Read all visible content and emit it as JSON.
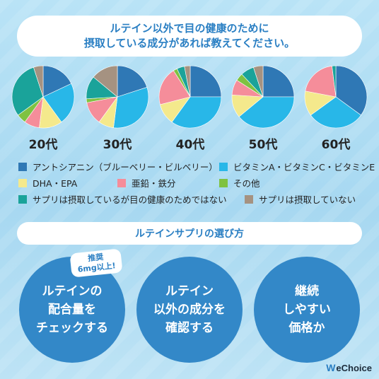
{
  "question": {
    "line1": "ルテイン以外で目の健康のために",
    "line2": "摂取している成分があれば教えてください。"
  },
  "colors": {
    "anthocyanin": "#2f78b5",
    "vitamin": "#28b7e8",
    "dha": "#f4e98c",
    "zinc": "#f58d9a",
    "other": "#7fc241",
    "supp_not_eye": "#1aa39a",
    "no_supp": "#a59281"
  },
  "chart_data": {
    "type": "pie",
    "categories": [
      "アントシアニン（ブルーベリー・ビルベリー）",
      "ビタミンA・ビタミンC・ビタミンE",
      "DHA・EPA",
      "亜鉛・鉄分",
      "その他",
      "サプリは摂取しているが目の健康のためではない",
      "サプリは摂取していない"
    ],
    "series": [
      {
        "name": "20代",
        "values": [
          18,
          22,
          12,
          8,
          5,
          30,
          5
        ]
      },
      {
        "name": "30代",
        "values": [
          20,
          32,
          8,
          12,
          2,
          12,
          14
        ]
      },
      {
        "name": "40代",
        "values": [
          25,
          35,
          11,
          20,
          2,
          4,
          3
        ]
      },
      {
        "name": "50代",
        "values": [
          25,
          39,
          12,
          8,
          4,
          7,
          5
        ]
      },
      {
        "name": "60代",
        "values": [
          35,
          30,
          13,
          20,
          0,
          2,
          0
        ]
      }
    ]
  },
  "subtitle": "ルテインサプリの選び方",
  "badge": {
    "line1": "推奨",
    "line2": "6mg以上!"
  },
  "tips": [
    {
      "line1": "ルテインの",
      "line2": "配合量を",
      "line3": "チェックする"
    },
    {
      "line1": "ルテイン",
      "line2": "以外の成分を",
      "line3": "確認する"
    },
    {
      "line1": "継続",
      "line2": "しやすい",
      "line3": "価格か"
    }
  ],
  "logo": {
    "mark": "W",
    "text": "eChoice"
  }
}
